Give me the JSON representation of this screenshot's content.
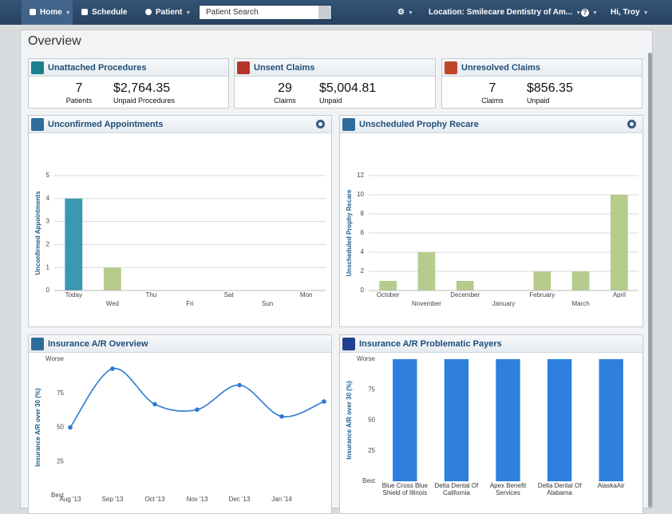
{
  "nav": {
    "items": [
      "Home",
      "Schedule",
      "Patient"
    ],
    "search_placeholder": "Patient Search",
    "location": "Location: Smilecare Dentistry of Am...",
    "greeting": "Hi, Troy"
  },
  "page_title": "Overview",
  "summary_cards": [
    {
      "title": "Unattached Procedures",
      "stats": [
        {
          "value": "7",
          "label": "Patients"
        },
        {
          "value": "$2,764.35",
          "label": "Unpaid Procedures"
        }
      ]
    },
    {
      "title": "Unsent Claims",
      "stats": [
        {
          "value": "29",
          "label": "Claims"
        },
        {
          "value": "$5,004.81",
          "label": "Unpaid"
        }
      ]
    },
    {
      "title": "Unresolved Claims",
      "stats": [
        {
          "value": "7",
          "label": "Claims"
        },
        {
          "value": "$856.35",
          "label": "Unpaid"
        }
      ]
    }
  ],
  "chart_data": [
    {
      "type": "bar",
      "title": "Unconfirmed Appointments",
      "y_label": "Unconfirmed Appointments",
      "categories": [
        "Today",
        "Wed",
        "Thu",
        "Fri",
        "Sat",
        "Sun",
        "Mon"
      ],
      "values": [
        4,
        1,
        0,
        0,
        0,
        0,
        0
      ],
      "colors": [
        "#3a98b0",
        "#b5cc8c",
        "#b5cc8c",
        "#b5cc8c",
        "#b5cc8c",
        "#b5cc8c",
        "#b5cc8c"
      ],
      "ylim": [
        0,
        5
      ],
      "yticks": [
        0,
        1,
        2,
        3,
        4,
        5
      ],
      "grid": true
    },
    {
      "type": "bar",
      "title": "Unscheduled Prophy Recare",
      "y_label": "Unscheduled Prophy Recare",
      "categories": [
        "October",
        "November",
        "December",
        "January",
        "February",
        "March",
        "April"
      ],
      "values": [
        1,
        4,
        1,
        0,
        2,
        2,
        10
      ],
      "colors": [
        "#b5cc8c",
        "#b5cc8c",
        "#b5cc8c",
        "#b5cc8c",
        "#b5cc8c",
        "#b5cc8c",
        "#b5cc8c"
      ],
      "ylim": [
        0,
        12
      ],
      "yticks": [
        0,
        2,
        4,
        6,
        8,
        10,
        12
      ],
      "grid": true
    },
    {
      "type": "line",
      "title": "Insurance A/R Overview",
      "y_label": "Insurance A/R over 30 (%)",
      "categories": [
        "Aug '13",
        "Sep '13",
        "Oct '13",
        "Nov '13",
        "Dec '13",
        "Jan '14",
        null
      ],
      "series": [
        {
          "name": "Insurance A/R over 30",
          "color": "#2b7bd0",
          "values": [
            50,
            93,
            67,
            63,
            81,
            58,
            69
          ]
        }
      ],
      "ylim": [
        0,
        100
      ],
      "yticks": [
        {
          "value": 0,
          "label": "Best"
        },
        25,
        50,
        75,
        {
          "value": 100,
          "label": "Worse"
        }
      ],
      "grid": false
    },
    {
      "type": "bar",
      "title": "Insurance A/R Problematic Payers",
      "y_label": "Insurance A/R over 30 (%)",
      "categories": [
        "Blue Cross Blue Shield of Illinois",
        "Delta Dental Of California",
        "Apex Benefit Services",
        "Delta Dental Of Alabama",
        "AlaskaAir"
      ],
      "values": [
        100,
        100,
        100,
        100,
        100
      ],
      "colors": [
        "#2e7fde",
        "#2e7fde",
        "#2e7fde",
        "#2e7fde",
        "#2e7fde"
      ],
      "ylim": [
        0,
        100
      ],
      "yticks": [
        {
          "value": 0,
          "label": "Best"
        },
        25,
        50,
        75,
        {
          "value": 100,
          "label": "Worse"
        }
      ],
      "grid": false
    }
  ]
}
